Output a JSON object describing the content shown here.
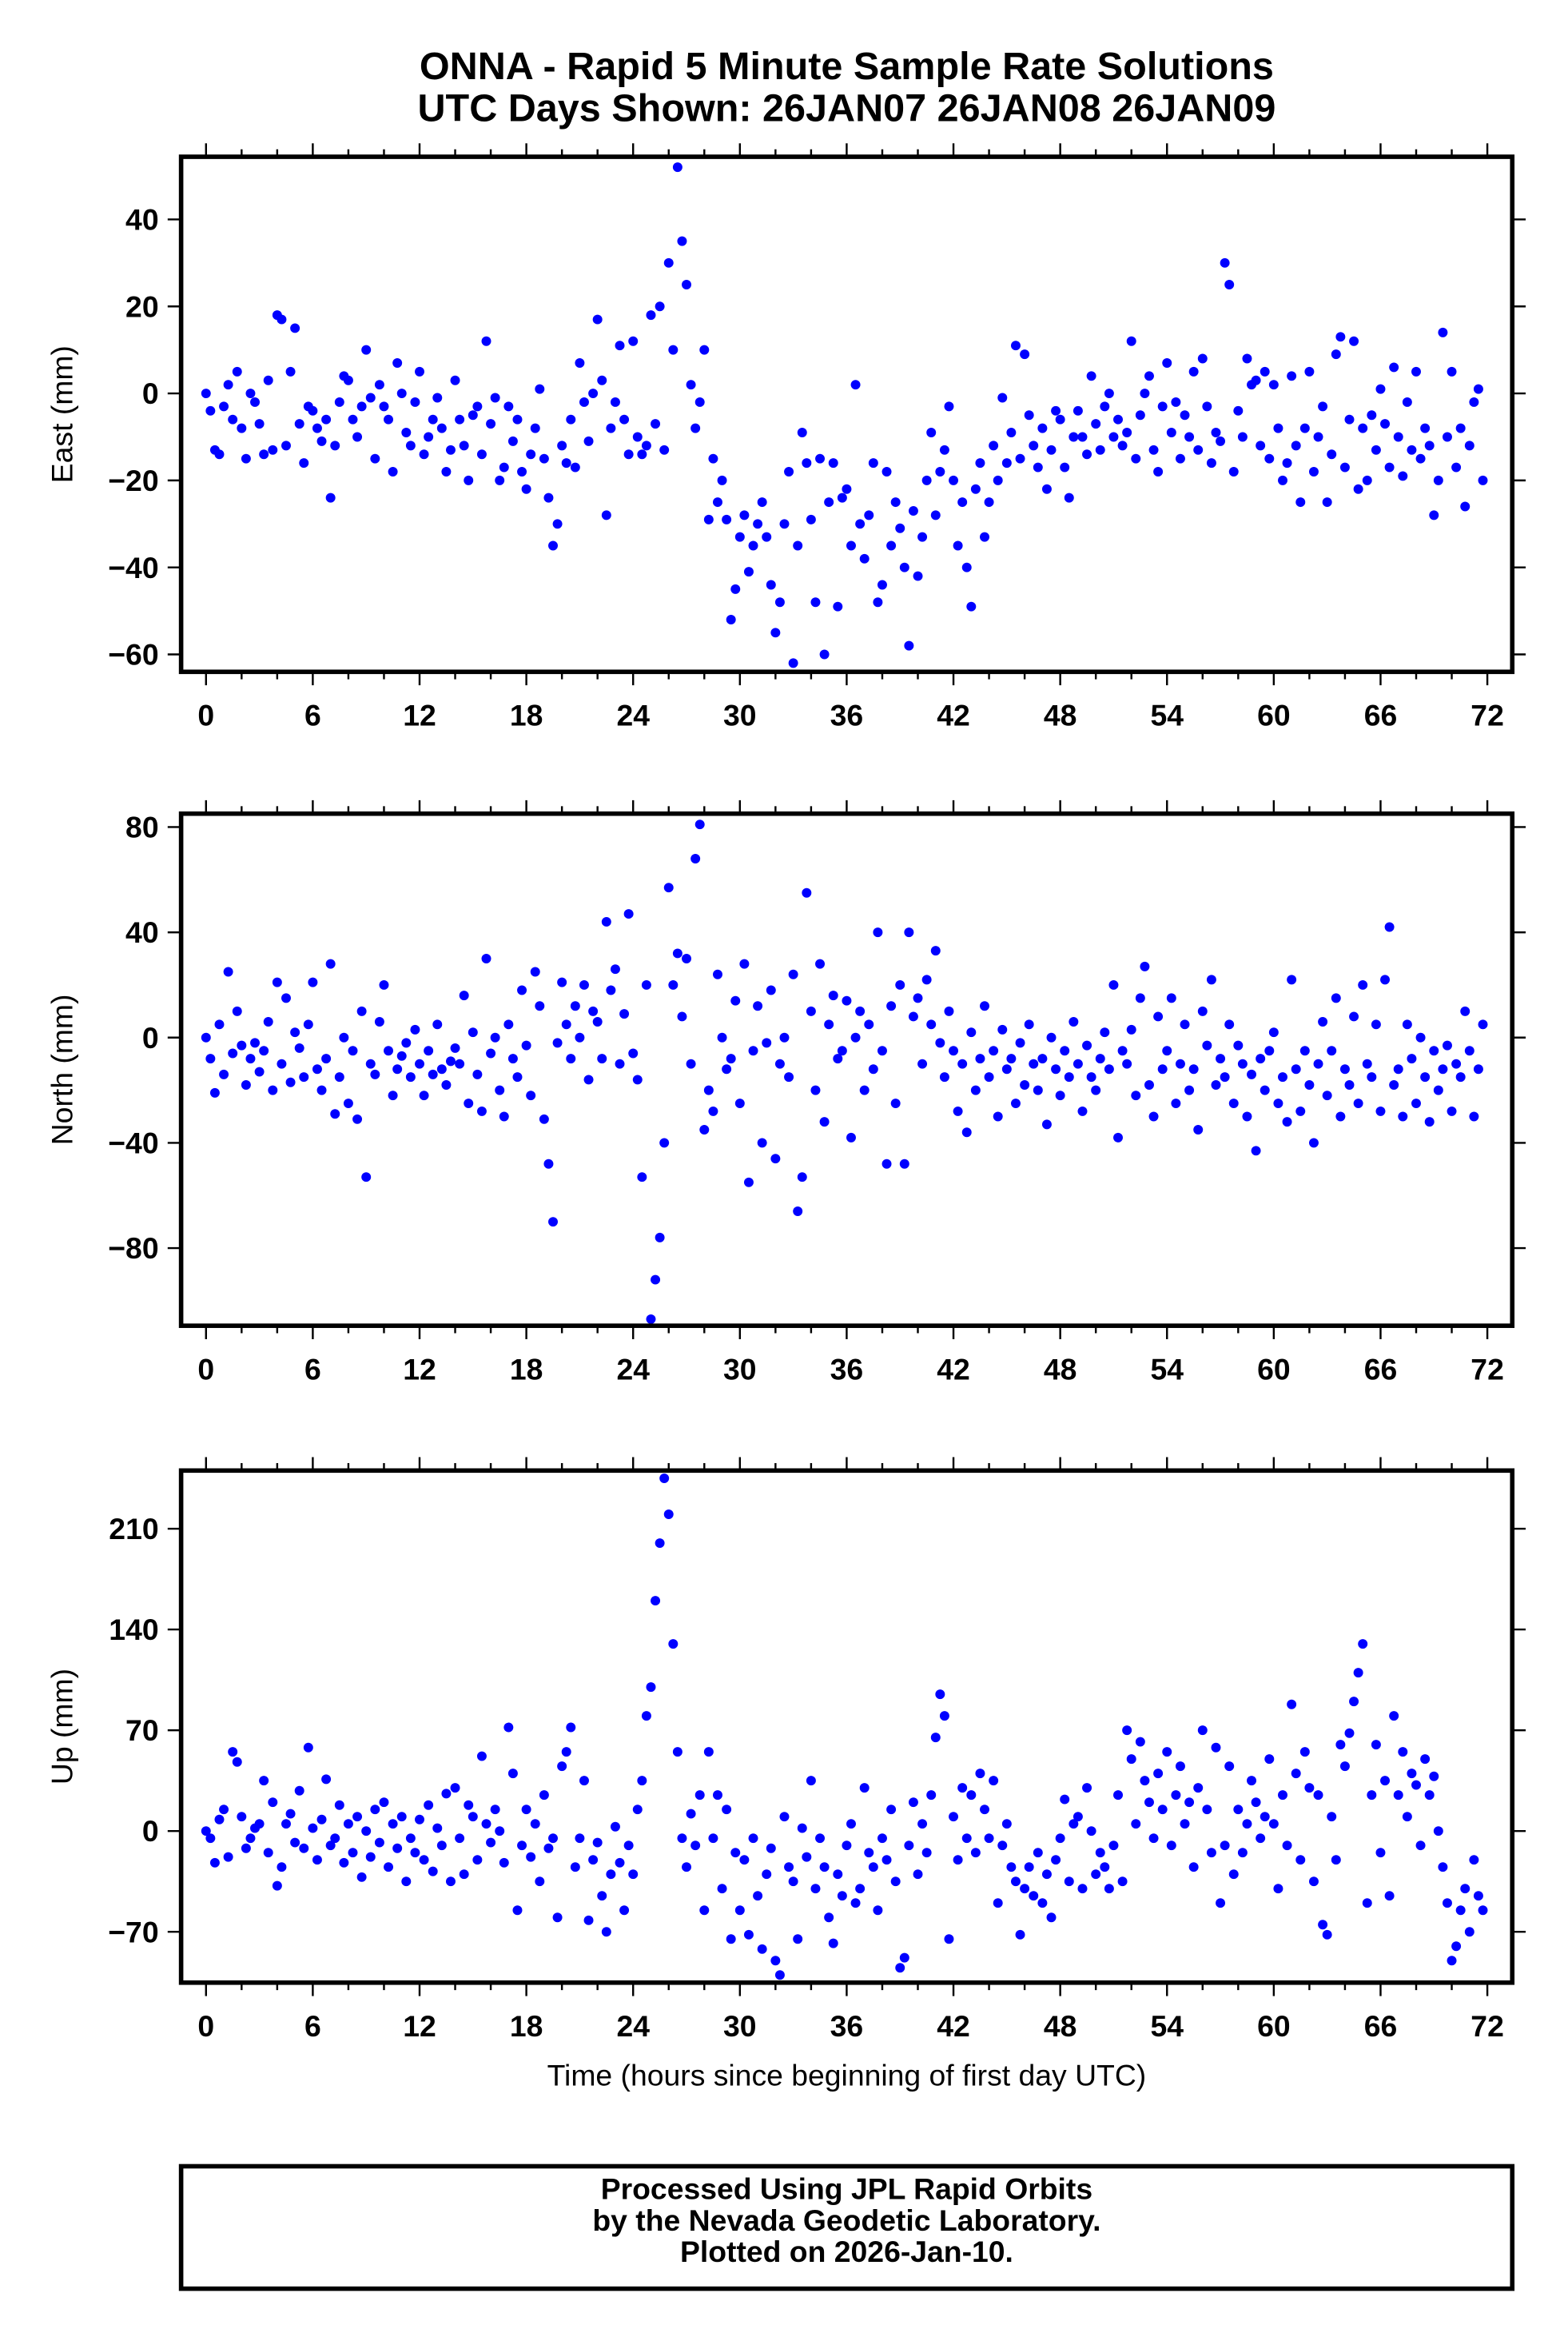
{
  "chart_data": {
    "type": "scatter",
    "title": "ONNA - Rapid 5 Minute Sample Rate Solutions",
    "subtitle": "UTC Days Shown:  26JAN07 26JAN08 26JAN09",
    "xlabel": "Time (hours since beginning of first day UTC)",
    "xlim": [
      -1.4,
      73.4
    ],
    "xticks": [
      "0",
      "6",
      "12",
      "18",
      "24",
      "30",
      "36",
      "42",
      "48",
      "54",
      "60",
      "66",
      "72"
    ],
    "x_start": 0,
    "x_step": 0.25,
    "point_color": "#0000ff",
    "grid": false,
    "panels": [
      {
        "name": "east",
        "ylabel": "East (mm)",
        "ylim": [
          -64,
          54.4
        ],
        "yticks": [
          -60,
          -40,
          -20,
          0,
          20,
          40
        ],
        "ytick_labels": [
          "−60",
          "−40",
          "−20",
          "0",
          "20",
          "40"
        ],
        "values": [
          0,
          -4,
          -13,
          -14,
          -3,
          2,
          -6,
          5,
          -8,
          -15,
          0,
          -2,
          -7,
          -14,
          3,
          -13,
          18,
          17,
          -12,
          5,
          15,
          -7,
          -16,
          -3,
          -4,
          -8,
          -11,
          -6,
          -24,
          -12,
          -2,
          4,
          3,
          -6,
          -10,
          -3,
          10,
          -1,
          -15,
          2,
          -3,
          -6,
          -18,
          7,
          0,
          -9,
          -12,
          -2,
          5,
          -14,
          -10,
          -6,
          -1,
          -8,
          -18,
          -13,
          3,
          -6,
          -12,
          -20,
          -5,
          -3,
          -14,
          12,
          -7,
          -1,
          -20,
          -17,
          -3,
          -11,
          -6,
          -18,
          -22,
          -14,
          -8,
          1,
          -15,
          -24,
          -35,
          -30,
          -12,
          -16,
          -6,
          -17,
          7,
          -2,
          -11,
          0,
          17,
          3,
          -28,
          -8,
          -2,
          11,
          -6,
          -14,
          12,
          -10,
          -14,
          -12,
          18,
          -7,
          20,
          -13,
          30,
          10,
          52,
          35,
          25,
          2,
          -8,
          -2,
          10,
          -29,
          -15,
          -25,
          -20,
          -29,
          -52,
          -45,
          -33,
          -28,
          -41,
          -35,
          -30,
          -25,
          -33,
          -44,
          -55,
          -48,
          -30,
          -18,
          -62,
          -35,
          -9,
          -16,
          -29,
          -48,
          -15,
          -60,
          -25,
          -16,
          -49,
          -24,
          -22,
          -35,
          2,
          -30,
          -38,
          -28,
          -16,
          -48,
          -44,
          -18,
          -35,
          -25,
          -31,
          -40,
          -58,
          -27,
          -42,
          -33,
          -20,
          -9,
          -28,
          -18,
          -13,
          -3,
          -20,
          -35,
          -25,
          -40,
          -49,
          -22,
          -16,
          -33,
          -25,
          -12,
          -20,
          -1,
          -16,
          -9,
          11,
          -15,
          9,
          -5,
          -12,
          -17,
          -8,
          -22,
          -13,
          -4,
          -6,
          -17,
          -24,
          -10,
          -4,
          -10,
          -14,
          4,
          -7,
          -13,
          -3,
          0,
          -10,
          -6,
          -12,
          -9,
          12,
          -15,
          -5,
          0,
          4,
          -13,
          -18,
          -3,
          7,
          -9,
          -2,
          -15,
          -5,
          -10,
          5,
          -13,
          8,
          -3,
          -16,
          -9,
          -11,
          30,
          25,
          -18,
          -4,
          -10,
          8,
          2,
          3,
          -12,
          5,
          -15,
          2,
          -8,
          -20,
          -16,
          4,
          -12,
          -25,
          -8,
          5,
          -18,
          -10,
          -3,
          -25,
          -14,
          9,
          13,
          -17,
          -6,
          12,
          -22,
          -8,
          -20,
          -5,
          -13,
          1,
          -7,
          -17,
          6,
          -10,
          -19,
          -2,
          -13,
          5,
          -15,
          -8,
          -12,
          -28,
          -20,
          14,
          -10,
          5,
          -17,
          -8,
          -26,
          -12,
          -2,
          1,
          -20
        ]
      },
      {
        "name": "north",
        "ylabel": "North (mm)",
        "ylim": [
          -109.5,
          85.1
        ],
        "yticks": [
          -80,
          -40,
          0,
          40,
          80
        ],
        "ytick_labels": [
          "−80",
          "−40",
          "0",
          "40",
          "80"
        ],
        "values": [
          0,
          -8,
          -21,
          5,
          -14,
          25,
          -6,
          10,
          -3,
          -18,
          -8,
          -2,
          -13,
          -5,
          6,
          -20,
          21,
          -10,
          15,
          -17,
          2,
          -4,
          -15,
          5,
          21,
          -12,
          -20,
          -8,
          28,
          -29,
          -15,
          0,
          -25,
          -5,
          -31,
          10,
          -53,
          -10,
          -14,
          6,
          20,
          -5,
          -22,
          -12,
          -7,
          -2,
          -15,
          3,
          -10,
          -22,
          -5,
          -14,
          5,
          -12,
          -18,
          -9,
          -4,
          -10,
          16,
          -25,
          2,
          -14,
          -28,
          30,
          -6,
          0,
          -20,
          -30,
          5,
          -8,
          -15,
          18,
          -3,
          -22,
          25,
          12,
          -31,
          -48,
          -70,
          -2,
          21,
          5,
          -8,
          12,
          0,
          20,
          -16,
          10,
          6,
          -8,
          44,
          18,
          26,
          -10,
          9,
          47,
          -6,
          -16,
          -53,
          20,
          -107,
          -92,
          -76,
          -40,
          57,
          20,
          32,
          8,
          30,
          -10,
          68,
          81,
          -35,
          -20,
          -28,
          24,
          0,
          -12,
          -8,
          14,
          -25,
          28,
          -55,
          -5,
          12,
          -40,
          -2,
          18,
          -46,
          -10,
          0,
          -15,
          24,
          -66,
          -53,
          55,
          10,
          -20,
          28,
          -32,
          5,
          16,
          -8,
          -5,
          14,
          -38,
          0,
          10,
          -20,
          5,
          -12,
          40,
          -5,
          -48,
          12,
          -25,
          20,
          -48,
          40,
          8,
          15,
          -10,
          22,
          5,
          33,
          -2,
          -15,
          10,
          -5,
          -28,
          -10,
          -36,
          2,
          -20,
          -8,
          12,
          -15,
          -5,
          -30,
          3,
          -12,
          -8,
          -25,
          -2,
          -18,
          5,
          -10,
          -20,
          -8,
          -33,
          0,
          -12,
          -22,
          -5,
          -15,
          6,
          -10,
          -28,
          -3,
          -15,
          -20,
          -8,
          2,
          -12,
          20,
          -38,
          -5,
          -10,
          3,
          -22,
          15,
          27,
          -18,
          -30,
          8,
          -12,
          -5,
          15,
          -25,
          -10,
          5,
          -20,
          -12,
          -35,
          10,
          -3,
          22,
          -18,
          -8,
          -15,
          5,
          -25,
          -3,
          -10,
          -30,
          -14,
          -43,
          -8,
          -20,
          -5,
          2,
          -25,
          -15,
          -32,
          22,
          -12,
          -28,
          -5,
          -18,
          -40,
          -10,
          6,
          -22,
          -5,
          15,
          -30,
          -12,
          -18,
          8,
          -25,
          20,
          -10,
          -15,
          5,
          -28,
          22,
          42,
          -18,
          -12,
          -30,
          5,
          -8,
          -25,
          0,
          -15,
          -32,
          -5,
          -20,
          -12,
          -3,
          -28,
          -10,
          -15,
          10,
          -5,
          -30,
          -12,
          5
        ]
      },
      {
        "name": "up",
        "ylabel": "Up (mm)",
        "ylim": [
          -105.3,
          250.4
        ],
        "yticks": [
          -70,
          0,
          70,
          140,
          210
        ],
        "ytick_labels": [
          "−70",
          "0",
          "70",
          "140",
          "210"
        ],
        "values": [
          0,
          -5,
          -22,
          8,
          15,
          -18,
          55,
          48,
          10,
          -12,
          -5,
          2,
          5,
          35,
          -15,
          20,
          -38,
          -25,
          5,
          12,
          -8,
          28,
          -12,
          58,
          2,
          -20,
          8,
          36,
          -10,
          -5,
          18,
          -22,
          5,
          -15,
          10,
          -32,
          0,
          -18,
          15,
          -8,
          20,
          -25,
          5,
          -12,
          10,
          -35,
          -5,
          -15,
          8,
          -20,
          18,
          -28,
          2,
          -10,
          26,
          -35,
          30,
          -5,
          -30,
          18,
          10,
          -20,
          52,
          5,
          -8,
          15,
          0,
          -22,
          72,
          40,
          -55,
          -10,
          15,
          -18,
          5,
          -35,
          25,
          -12,
          -5,
          -60,
          45,
          55,
          72,
          -25,
          -5,
          35,
          -62,
          -20,
          -8,
          -45,
          -70,
          -30,
          3,
          -22,
          -55,
          -10,
          -30,
          15,
          35,
          80,
          100,
          160,
          200,
          245,
          220,
          130,
          55,
          -5,
          -25,
          12,
          -10,
          25,
          -55,
          55,
          -5,
          25,
          -40,
          15,
          -75,
          -15,
          -55,
          -20,
          -72,
          -5,
          -45,
          -82,
          -30,
          -12,
          -90,
          -100,
          10,
          -25,
          -35,
          -75,
          2,
          -18,
          35,
          -40,
          -5,
          -25,
          -60,
          -78,
          -30,
          -45,
          -10,
          5,
          -50,
          -40,
          30,
          -15,
          -25,
          -55,
          -5,
          -20,
          15,
          -35,
          -95,
          -88,
          -10,
          20,
          -30,
          5,
          -15,
          25,
          65,
          95,
          80,
          -75,
          10,
          -20,
          30,
          -5,
          25,
          -15,
          40,
          15,
          -5,
          35,
          -50,
          -10,
          5,
          -25,
          -35,
          -72,
          -40,
          -25,
          -45,
          -15,
          -50,
          -30,
          -60,
          -20,
          -5,
          22,
          -35,
          5,
          10,
          -40,
          30,
          0,
          -30,
          -15,
          -25,
          -40,
          -10,
          25,
          -35,
          70,
          50,
          5,
          62,
          35,
          20,
          -5,
          40,
          15,
          55,
          -10,
          25,
          45,
          5,
          20,
          -25,
          30,
          70,
          15,
          -15,
          58,
          -50,
          -10,
          45,
          -30,
          15,
          -15,
          5,
          35,
          20,
          -5,
          10,
          50,
          5,
          -40,
          25,
          -10,
          88,
          40,
          -20,
          55,
          30,
          -35,
          25,
          -65,
          -72,
          10,
          -20,
          60,
          45,
          68,
          90,
          110,
          130,
          -50,
          25,
          60,
          -15,
          35,
          -45,
          80,
          25,
          55,
          10,
          40,
          32,
          -10,
          50,
          25,
          38,
          0,
          -25,
          -50,
          -90,
          -80,
          -55,
          -40,
          -70,
          -20,
          -45,
          -55
        ]
      }
    ]
  },
  "footer": {
    "line1": "Processed Using JPL Rapid Orbits",
    "line2": "by the Nevada Geodetic Laboratory.",
    "line3": "Plotted on 2026-Jan-10."
  }
}
